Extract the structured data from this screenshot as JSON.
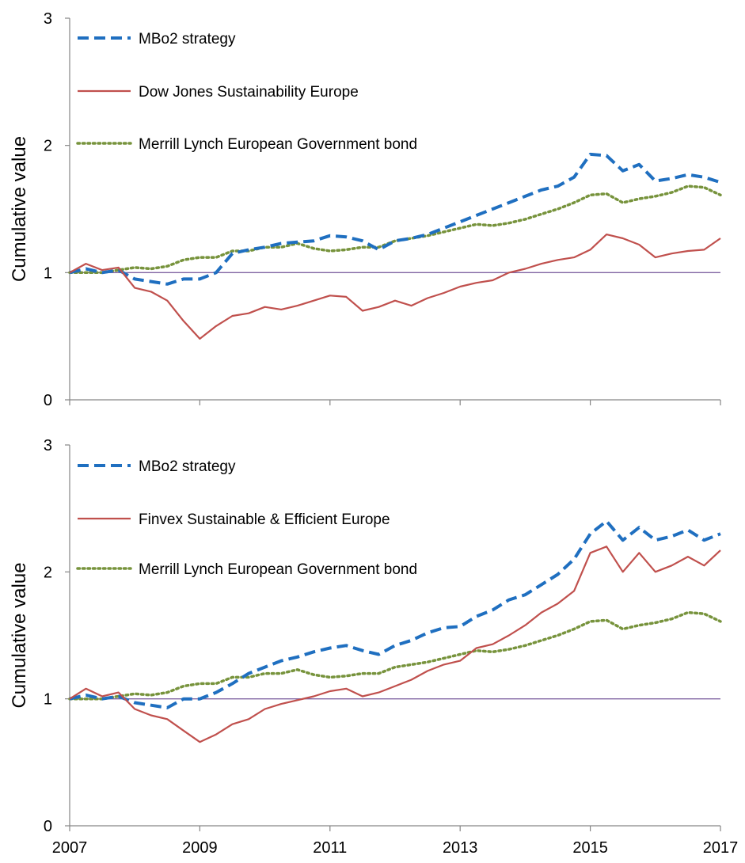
{
  "chart_data": [
    {
      "type": "line",
      "title": "",
      "xlabel": "",
      "ylabel": "Cumulative value",
      "xlim": [
        2007,
        2017
      ],
      "ylim": [
        0,
        3
      ],
      "xticks": [
        "2007",
        "2009",
        "2011",
        "2013",
        "2015",
        "2017"
      ],
      "yticks": [
        "0",
        "1",
        "2",
        "3"
      ],
      "grid": false,
      "legend": "top-left",
      "reference_line": 1,
      "series": [
        {
          "name": "MBo2 strategy",
          "color": "#1f6fc0",
          "style": "dashed",
          "x": [
            2007.0,
            2007.25,
            2007.5,
            2007.75,
            2008.0,
            2008.25,
            2008.5,
            2008.75,
            2009.0,
            2009.25,
            2009.5,
            2009.75,
            2010.0,
            2010.25,
            2010.5,
            2010.75,
            2011.0,
            2011.25,
            2011.5,
            2011.75,
            2012.0,
            2012.25,
            2012.5,
            2012.75,
            2013.0,
            2013.25,
            2013.5,
            2013.75,
            2014.0,
            2014.25,
            2014.5,
            2014.75,
            2015.0,
            2015.25,
            2015.5,
            2015.75,
            2016.0,
            2016.25,
            2016.5,
            2016.75,
            2017.0
          ],
          "y": [
            1.0,
            1.03,
            1.0,
            1.02,
            0.95,
            0.93,
            0.91,
            0.95,
            0.95,
            1.0,
            1.15,
            1.18,
            1.2,
            1.23,
            1.24,
            1.25,
            1.29,
            1.28,
            1.25,
            1.18,
            1.25,
            1.27,
            1.3,
            1.35,
            1.4,
            1.45,
            1.5,
            1.55,
            1.6,
            1.65,
            1.68,
            1.75,
            1.93,
            1.92,
            1.8,
            1.85,
            1.72,
            1.74,
            1.77,
            1.75,
            1.71
          ]
        },
        {
          "name": "Dow Jones Sustainability Europe",
          "color": "#c0504d",
          "style": "solid",
          "x": [
            2007.0,
            2007.25,
            2007.5,
            2007.75,
            2008.0,
            2008.25,
            2008.5,
            2008.75,
            2009.0,
            2009.25,
            2009.5,
            2009.75,
            2010.0,
            2010.25,
            2010.5,
            2010.75,
            2011.0,
            2011.25,
            2011.5,
            2011.75,
            2012.0,
            2012.25,
            2012.5,
            2012.75,
            2013.0,
            2013.25,
            2013.5,
            2013.75,
            2014.0,
            2014.25,
            2014.5,
            2014.75,
            2015.0,
            2015.25,
            2015.5,
            2015.75,
            2016.0,
            2016.25,
            2016.5,
            2016.75,
            2017.0
          ],
          "y": [
            1.0,
            1.07,
            1.02,
            1.04,
            0.88,
            0.85,
            0.78,
            0.62,
            0.48,
            0.58,
            0.66,
            0.68,
            0.73,
            0.71,
            0.74,
            0.78,
            0.82,
            0.81,
            0.7,
            0.73,
            0.78,
            0.74,
            0.8,
            0.84,
            0.89,
            0.92,
            0.94,
            1.0,
            1.03,
            1.07,
            1.1,
            1.12,
            1.18,
            1.3,
            1.27,
            1.22,
            1.12,
            1.15,
            1.17,
            1.18,
            1.27
          ]
        },
        {
          "name": "Merrill Lynch European Government bond",
          "color": "#77933c",
          "style": "dotted",
          "x": [
            2007.0,
            2007.25,
            2007.5,
            2007.75,
            2008.0,
            2008.25,
            2008.5,
            2008.75,
            2009.0,
            2009.25,
            2009.5,
            2009.75,
            2010.0,
            2010.25,
            2010.5,
            2010.75,
            2011.0,
            2011.25,
            2011.5,
            2011.75,
            2012.0,
            2012.25,
            2012.5,
            2012.75,
            2013.0,
            2013.25,
            2013.5,
            2013.75,
            2014.0,
            2014.25,
            2014.5,
            2014.75,
            2015.0,
            2015.25,
            2015.5,
            2015.75,
            2016.0,
            2016.25,
            2016.5,
            2016.75,
            2017.0
          ],
          "y": [
            1.0,
            1.0,
            1.0,
            1.02,
            1.04,
            1.03,
            1.05,
            1.1,
            1.12,
            1.12,
            1.17,
            1.17,
            1.2,
            1.2,
            1.23,
            1.19,
            1.17,
            1.18,
            1.2,
            1.2,
            1.25,
            1.27,
            1.29,
            1.32,
            1.35,
            1.38,
            1.37,
            1.39,
            1.42,
            1.46,
            1.5,
            1.55,
            1.61,
            1.62,
            1.55,
            1.58,
            1.6,
            1.63,
            1.68,
            1.67,
            1.61
          ]
        }
      ]
    },
    {
      "type": "line",
      "title": "",
      "xlabel": "",
      "ylabel": "Cumulative value",
      "xlim": [
        2007,
        2017
      ],
      "ylim": [
        0,
        3
      ],
      "xticks": [
        "2007",
        "2009",
        "2011",
        "2013",
        "2015",
        "2017"
      ],
      "yticks": [
        "0",
        "1",
        "2",
        "3"
      ],
      "grid": false,
      "legend": "top-left",
      "reference_line": 1,
      "series": [
        {
          "name": "MBo2 strategy",
          "color": "#1f6fc0",
          "style": "dashed",
          "x": [
            2007.0,
            2007.25,
            2007.5,
            2007.75,
            2008.0,
            2008.25,
            2008.5,
            2008.75,
            2009.0,
            2009.25,
            2009.5,
            2009.75,
            2010.0,
            2010.25,
            2010.5,
            2010.75,
            2011.0,
            2011.25,
            2011.5,
            2011.75,
            2012.0,
            2012.25,
            2012.5,
            2012.75,
            2013.0,
            2013.25,
            2013.5,
            2013.75,
            2014.0,
            2014.25,
            2014.5,
            2014.75,
            2015.0,
            2015.25,
            2015.5,
            2015.75,
            2016.0,
            2016.25,
            2016.5,
            2016.75,
            2017.0
          ],
          "y": [
            1.0,
            1.03,
            1.0,
            1.02,
            0.97,
            0.95,
            0.93,
            1.0,
            1.0,
            1.05,
            1.12,
            1.2,
            1.25,
            1.3,
            1.33,
            1.37,
            1.4,
            1.42,
            1.38,
            1.35,
            1.42,
            1.46,
            1.52,
            1.56,
            1.57,
            1.65,
            1.7,
            1.78,
            1.82,
            1.9,
            1.98,
            2.1,
            2.3,
            2.4,
            2.25,
            2.35,
            2.25,
            2.28,
            2.33,
            2.25,
            2.3
          ]
        },
        {
          "name": "Finvex Sustainable & Efficient Europe",
          "color": "#c0504d",
          "style": "solid",
          "x": [
            2007.0,
            2007.25,
            2007.5,
            2007.75,
            2008.0,
            2008.25,
            2008.5,
            2008.75,
            2009.0,
            2009.25,
            2009.5,
            2009.75,
            2010.0,
            2010.25,
            2010.5,
            2010.75,
            2011.0,
            2011.25,
            2011.5,
            2011.75,
            2012.0,
            2012.25,
            2012.5,
            2012.75,
            2013.0,
            2013.25,
            2013.5,
            2013.75,
            2014.0,
            2014.25,
            2014.5,
            2014.75,
            2015.0,
            2015.25,
            2015.5,
            2015.75,
            2016.0,
            2016.25,
            2016.5,
            2016.75,
            2017.0
          ],
          "y": [
            1.0,
            1.08,
            1.02,
            1.05,
            0.92,
            0.87,
            0.84,
            0.75,
            0.66,
            0.72,
            0.8,
            0.84,
            0.92,
            0.96,
            0.99,
            1.02,
            1.06,
            1.08,
            1.02,
            1.05,
            1.1,
            1.15,
            1.22,
            1.27,
            1.3,
            1.4,
            1.43,
            1.5,
            1.58,
            1.68,
            1.75,
            1.85,
            2.15,
            2.2,
            2.0,
            2.15,
            2.0,
            2.05,
            2.12,
            2.05,
            2.17
          ]
        },
        {
          "name": "Merrill Lynch European Government bond",
          "color": "#77933c",
          "style": "dotted",
          "x": [
            2007.0,
            2007.25,
            2007.5,
            2007.75,
            2008.0,
            2008.25,
            2008.5,
            2008.75,
            2009.0,
            2009.25,
            2009.5,
            2009.75,
            2010.0,
            2010.25,
            2010.5,
            2010.75,
            2011.0,
            2011.25,
            2011.5,
            2011.75,
            2012.0,
            2012.25,
            2012.5,
            2012.75,
            2013.0,
            2013.25,
            2013.5,
            2013.75,
            2014.0,
            2014.25,
            2014.5,
            2014.75,
            2015.0,
            2015.25,
            2015.5,
            2015.75,
            2016.0,
            2016.25,
            2016.5,
            2016.75,
            2017.0
          ],
          "y": [
            1.0,
            1.0,
            1.0,
            1.02,
            1.04,
            1.03,
            1.05,
            1.1,
            1.12,
            1.12,
            1.17,
            1.17,
            1.2,
            1.2,
            1.23,
            1.19,
            1.17,
            1.18,
            1.2,
            1.2,
            1.25,
            1.27,
            1.29,
            1.32,
            1.35,
            1.38,
            1.37,
            1.39,
            1.42,
            1.46,
            1.5,
            1.55,
            1.61,
            1.62,
            1.55,
            1.58,
            1.6,
            1.63,
            1.68,
            1.67,
            1.61
          ]
        }
      ]
    }
  ],
  "colors": {
    "reference_line": "#8064a2",
    "axis": "#868686"
  }
}
